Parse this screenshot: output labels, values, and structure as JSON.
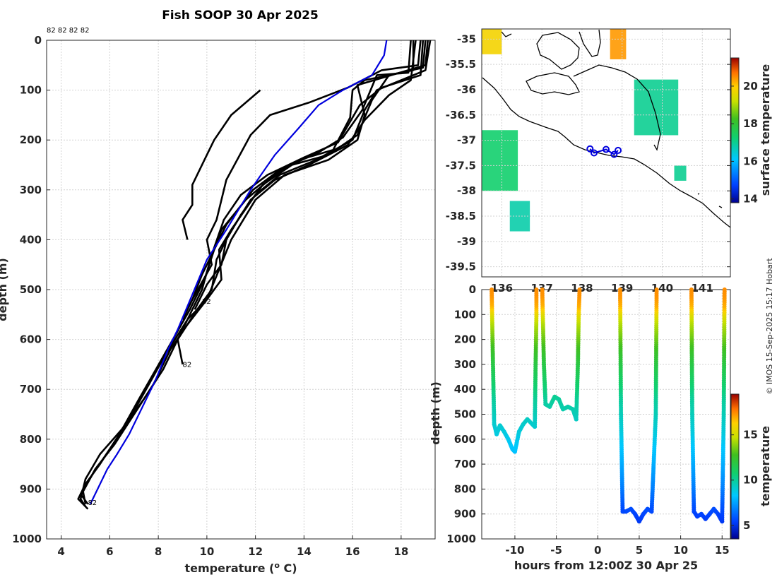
{
  "chart_data": [
    {
      "type": "line",
      "title": "Fish SOOP 30 Apr 2025",
      "xlabel": "temperature (° C)",
      "ylabel": "depth (m)",
      "xlim": [
        3.4,
        19.4
      ],
      "ylim": [
        1000,
        0
      ],
      "xticks": [
        4,
        6,
        8,
        10,
        12,
        14,
        16,
        18
      ],
      "yticks": [
        0,
        100,
        200,
        300,
        400,
        500,
        600,
        700,
        800,
        900,
        1000
      ],
      "top_label": "82 82 82 82",
      "profile_labels": [
        {
          "text": "82",
          "t": 9.8,
          "d": 528
        },
        {
          "text": "82",
          "t": 9.0,
          "d": 655
        },
        {
          "text": "82",
          "t": 5.1,
          "d": 932
        }
      ],
      "reference_profile": {
        "name": "climatology",
        "color": "#0000dd",
        "points": [
          [
            17.4,
            0
          ],
          [
            17.3,
            30
          ],
          [
            16.8,
            70
          ],
          [
            15.6,
            100
          ],
          [
            14.6,
            130
          ],
          [
            13.8,
            175
          ],
          [
            12.8,
            230
          ],
          [
            11.8,
            300
          ],
          [
            10.8,
            380
          ],
          [
            10.0,
            440
          ],
          [
            9.4,
            510
          ],
          [
            8.8,
            580
          ],
          [
            8.4,
            620
          ],
          [
            7.9,
            680
          ],
          [
            7.3,
            740
          ],
          [
            6.8,
            790
          ],
          [
            6.3,
            830
          ],
          [
            5.9,
            860
          ],
          [
            5.5,
            900
          ],
          [
            5.2,
            930
          ]
        ]
      },
      "profiles": [
        {
          "color": "#000000",
          "points": [
            [
              18.8,
              0
            ],
            [
              18.7,
              50
            ],
            [
              17.2,
              60
            ],
            [
              15.8,
              95
            ],
            [
              14.2,
              125
            ],
            [
              12.6,
              150
            ],
            [
              11.8,
              190
            ],
            [
              10.8,
              280
            ],
            [
              10.4,
              360
            ],
            [
              10.0,
              400
            ],
            [
              10.2,
              450
            ],
            [
              9.4,
              520
            ],
            [
              9.0,
              560
            ]
          ]
        },
        {
          "color": "#000000",
          "points": [
            [
              18.5,
              0
            ],
            [
              18.5,
              60
            ],
            [
              16.5,
              80
            ],
            [
              16.0,
              100
            ],
            [
              15.9,
              155
            ],
            [
              15.2,
              220
            ],
            [
              13.8,
              240
            ],
            [
              12.8,
              270
            ],
            [
              11.6,
              320
            ],
            [
              10.6,
              380
            ],
            [
              10.2,
              430
            ],
            [
              9.8,
              470
            ],
            [
              9.4,
              520
            ],
            [
              9.0,
              560
            ]
          ]
        },
        {
          "color": "#000000",
          "points": [
            [
              19.0,
              0
            ],
            [
              18.9,
              55
            ],
            [
              17.5,
              70
            ],
            [
              16.8,
              120
            ],
            [
              16.2,
              190
            ],
            [
              15.0,
              230
            ],
            [
              13.5,
              250
            ],
            [
              12.3,
              290
            ],
            [
              11.4,
              350
            ],
            [
              10.8,
              400
            ],
            [
              10.6,
              450
            ],
            [
              10.0,
              490
            ],
            [
              9.5,
              540
            ]
          ]
        },
        {
          "color": "#000000",
          "points": [
            [
              19.2,
              0
            ],
            [
              19.0,
              60
            ],
            [
              17.0,
              100
            ],
            [
              16.5,
              140
            ],
            [
              16.0,
              200
            ],
            [
              14.5,
              240
            ],
            [
              13.0,
              270
            ],
            [
              12.0,
              310
            ],
            [
              11.0,
              380
            ],
            [
              10.5,
              420
            ],
            [
              10.6,
              480
            ],
            [
              10.0,
              520
            ],
            [
              9.2,
              560
            ],
            [
              8.8,
              600
            ],
            [
              9.0,
              650
            ]
          ]
        },
        {
          "color": "#000000",
          "points": [
            [
              18.6,
              0
            ],
            [
              18.4,
              80
            ],
            [
              17.5,
              110
            ],
            [
              16.5,
              160
            ],
            [
              15.8,
              210
            ],
            [
              14.2,
              250
            ],
            [
              12.8,
              280
            ],
            [
              11.8,
              320
            ],
            [
              10.9,
              390
            ],
            [
              10.4,
              440
            ],
            [
              10.2,
              500
            ],
            [
              9.6,
              540
            ],
            [
              8.8,
              600
            ],
            [
              8.2,
              660
            ],
            [
              7.4,
              720
            ],
            [
              6.5,
              780
            ],
            [
              5.6,
              830
            ],
            [
              5.0,
              880
            ],
            [
              4.8,
              920
            ],
            [
              5.0,
              935
            ]
          ]
        },
        {
          "color": "#000000",
          "points": [
            [
              19.1,
              0
            ],
            [
              19.0,
              50
            ],
            [
              16.2,
              90
            ],
            [
              16.5,
              150
            ],
            [
              16.2,
              200
            ],
            [
              15.0,
              240
            ],
            [
              13.2,
              270
            ],
            [
              12.0,
              320
            ],
            [
              11.0,
              400
            ],
            [
              10.5,
              460
            ],
            [
              10.0,
              520
            ],
            [
              9.2,
              570
            ],
            [
              8.5,
              620
            ],
            [
              7.8,
              690
            ],
            [
              7.0,
              750
            ],
            [
              6.2,
              810
            ],
            [
              5.4,
              860
            ],
            [
              4.9,
              905
            ],
            [
              5.0,
              930
            ]
          ]
        },
        {
          "color": "#000000",
          "points": [
            [
              18.9,
              0
            ],
            [
              18.8,
              70
            ],
            [
              17.2,
              95
            ],
            [
              16.3,
              130
            ],
            [
              15.4,
              205
            ],
            [
              14.0,
              235
            ],
            [
              12.5,
              270
            ],
            [
              11.4,
              310
            ],
            [
              10.7,
              360
            ],
            [
              10.2,
              430
            ],
            [
              9.8,
              500
            ],
            [
              9.2,
              560
            ],
            [
              8.3,
              630
            ],
            [
              7.5,
              700
            ],
            [
              6.8,
              760
            ],
            [
              6.0,
              820
            ],
            [
              5.3,
              870
            ],
            [
              4.8,
              910
            ],
            [
              5.1,
              930
            ]
          ]
        },
        {
          "color": "#000000",
          "points": [
            [
              18.4,
              0
            ],
            [
              18.3,
              65
            ],
            [
              17.0,
              70
            ],
            [
              16.4,
              140
            ],
            [
              15.6,
              195
            ],
            [
              14.6,
              225
            ],
            [
              13.0,
              260
            ],
            [
              11.9,
              300
            ],
            [
              10.8,
              370
            ],
            [
              10.3,
              420
            ],
            [
              9.9,
              480
            ],
            [
              9.3,
              540
            ],
            [
              8.6,
              600
            ],
            [
              7.9,
              660
            ],
            [
              7.2,
              720
            ],
            [
              6.4,
              790
            ],
            [
              5.6,
              850
            ],
            [
              5.0,
              890
            ],
            [
              4.7,
              920
            ],
            [
              5.1,
              940
            ]
          ]
        },
        {
          "color": "#000000",
          "points": [
            [
              12.2,
              100
            ],
            [
              11.0,
              150
            ],
            [
              10.3,
              200
            ],
            [
              9.9,
              240
            ],
            [
              9.4,
              290
            ],
            [
              9.4,
              330
            ],
            [
              9.0,
              360
            ],
            [
              9.2,
              400
            ]
          ]
        }
      ]
    },
    {
      "type": "heatmap",
      "title": "",
      "xlabel": "",
      "ylabel": "",
      "xlim": [
        135.5,
        141.7
      ],
      "ylim": [
        -39.7,
        -34.8
      ],
      "xticks": [
        136,
        137,
        138,
        139,
        140,
        141
      ],
      "xtick_labels": [
        "136",
        "137",
        "138",
        "139",
        "140",
        "141"
      ],
      "yticks": [
        -35,
        -35.5,
        -36,
        -36.5,
        -37,
        -37.5,
        -38,
        -38.5,
        -39,
        -39.5
      ],
      "colorbar": {
        "label": "surface temperature",
        "min": 13.8,
        "max": 21.5,
        "ticks": [
          14,
          16,
          18,
          20
        ]
      },
      "sst_patches": [
        {
          "lon": [
            135.5,
            136.0
          ],
          "lat": [
            -35.3,
            -34.8
          ],
          "value": 19.8
        },
        {
          "lon": [
            138.7,
            139.1
          ],
          "lat": [
            -35.4,
            -34.8
          ],
          "value": 20.4
        },
        {
          "lon": [
            139.3,
            140.4
          ],
          "lat": [
            -36.9,
            -35.8
          ],
          "value": 17.0
        },
        {
          "lon": [
            135.5,
            136.4
          ],
          "lat": [
            -38.0,
            -36.8
          ],
          "value": 17.3
        },
        {
          "lon": [
            136.2,
            136.7
          ],
          "lat": [
            -38.8,
            -38.2
          ],
          "value": 16.8
        },
        {
          "lon": [
            140.3,
            140.6
          ],
          "lat": [
            -37.8,
            -37.5
          ],
          "value": 17.0
        }
      ],
      "track": {
        "color": "#0000dd",
        "points": [
          [
            138.2,
            -37.17
          ],
          [
            138.3,
            -37.25
          ],
          [
            138.6,
            -37.18
          ],
          [
            138.8,
            -37.28
          ],
          [
            138.9,
            -37.2
          ]
        ]
      }
    },
    {
      "type": "scatter",
      "title": "",
      "xlabel": "hours from 12:00Z 30 Apr 25",
      "ylabel": "depth (m)",
      "xlim": [
        -14,
        16
      ],
      "ylim": [
        1000,
        0
      ],
      "xticks": [
        -10,
        -5,
        0,
        5,
        10,
        15
      ],
      "yticks": [
        0,
        100,
        200,
        300,
        400,
        500,
        600,
        700,
        800,
        900,
        1000
      ],
      "colorbar": {
        "label": "temperature",
        "min": 3.5,
        "max": 19.5,
        "ticks": [
          5,
          10,
          15
        ]
      },
      "casts": [
        {
          "x": [
            -12.8,
            -12.7,
            -12.5,
            -12.2,
            -11.8,
            -11.3,
            -10.8,
            -10.3,
            -10.0,
            -9.5,
            -9.0,
            -8.5,
            -7.9,
            -7.6,
            -7.5,
            -7.4,
            -7.4
          ],
          "d": [
            0,
            200,
            540,
            580,
            545,
            570,
            600,
            640,
            650,
            570,
            540,
            520,
            540,
            550,
            300,
            100,
            0
          ]
        },
        {
          "x": [
            -6.7,
            -6.5,
            -6.3,
            -5.8,
            -5.2,
            -4.7,
            -4.2,
            -3.6,
            -3.0,
            -2.6,
            -2.4,
            -2.3,
            -2.2
          ],
          "d": [
            0,
            300,
            460,
            470,
            430,
            440,
            480,
            470,
            480,
            520,
            300,
            100,
            0
          ]
        },
        {
          "x": [
            2.7,
            2.8,
            3.0,
            3.4,
            4.0,
            4.5,
            5.0,
            5.5,
            6.0,
            6.5,
            7.0,
            7.1
          ],
          "d": [
            0,
            500,
            890,
            890,
            880,
            900,
            930,
            900,
            880,
            890,
            500,
            0
          ]
        },
        {
          "x": [
            11.3,
            11.4,
            11.6,
            12.0,
            12.5,
            13.0,
            13.5,
            14.0,
            14.5,
            15.0,
            15.2,
            15.3
          ],
          "d": [
            0,
            500,
            890,
            910,
            900,
            920,
            900,
            880,
            900,
            930,
            500,
            0
          ]
        }
      ]
    }
  ],
  "credit": "© IMOS 15-Sep-2025 15:17 Hobart"
}
